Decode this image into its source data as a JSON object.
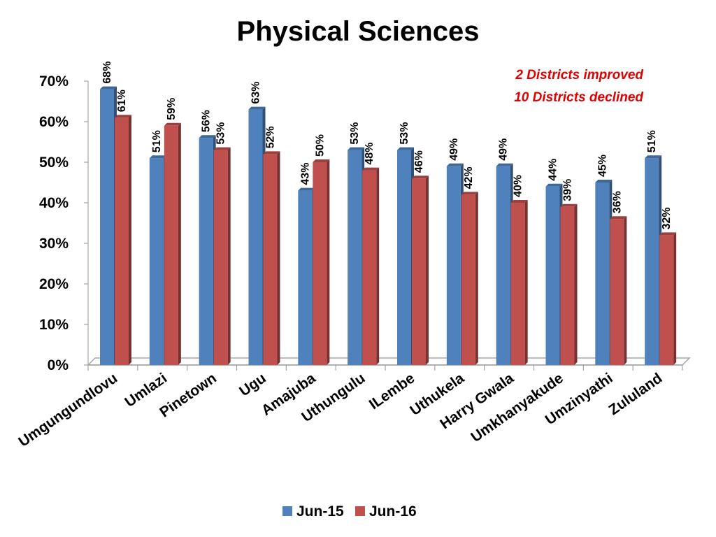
{
  "chart_data": {
    "type": "bar",
    "title": "Physical Sciences",
    "annotations": [
      "2 Districts improved",
      "10 Districts declined"
    ],
    "annotation_color": "#e00000",
    "categories": [
      "Umgungundlovu",
      "Umlazi",
      "Pinetown",
      "Ugu",
      "Amajuba",
      "Uthungulu",
      "ILembe",
      "Uthukela",
      "Harry Gwala",
      "Umkhanyakude",
      "Umzinyathi",
      "Zululand"
    ],
    "series": [
      {
        "name": "Jun-15",
        "color": "#4f81bd",
        "values": [
          68,
          51,
          56,
          63,
          43,
          53,
          53,
          49,
          49,
          44,
          45,
          51
        ]
      },
      {
        "name": "Jun-16",
        "color": "#c0504d",
        "values": [
          61,
          59,
          53,
          52,
          50,
          48,
          46,
          42,
          40,
          39,
          36,
          32
        ]
      }
    ],
    "ylim": [
      0,
      70
    ],
    "yticks": [
      0,
      10,
      20,
      30,
      40,
      50,
      60,
      70
    ],
    "ytick_format": "%",
    "legend_position": "bottom",
    "grid": false
  }
}
